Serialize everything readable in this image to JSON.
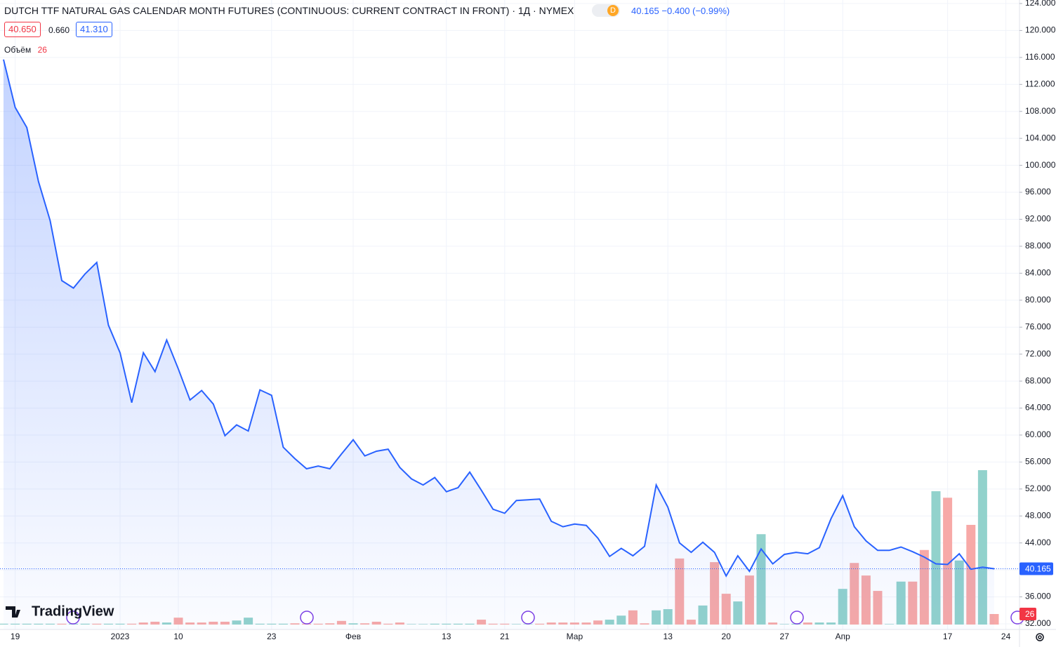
{
  "chart_data": {
    "type": "line",
    "title": "DUTCH TTF NATURAL GAS CALENDAR MONTH FUTURES (CONTINUOUS: CURRENT CONTRACT IN FRONT) · 1Д · NYMEX",
    "interval_badge": "D",
    "change": "−0.400",
    "change_percent": "(−0.99%)",
    "bid": "40.650",
    "spread": "0.660",
    "ask": "41.310",
    "watermark": "TradingView",
    "categories": [
      null,
      "19",
      null,
      null,
      null,
      null,
      null,
      null,
      null,
      null,
      "2023",
      null,
      null,
      null,
      null,
      "10",
      null,
      null,
      null,
      null,
      null,
      null,
      null,
      "23",
      null,
      null,
      null,
      null,
      null,
      null,
      "Фев",
      null,
      null,
      null,
      null,
      null,
      null,
      null,
      "13",
      null,
      null,
      null,
      null,
      "21",
      null,
      null,
      null,
      null,
      null,
      "Мар",
      null,
      null,
      null,
      null,
      null,
      null,
      null,
      "13",
      null,
      null,
      null,
      null,
      "20",
      null,
      null,
      null,
      null,
      "27",
      null,
      null,
      null,
      null,
      "Апр",
      null,
      null,
      null,
      null,
      null,
      null,
      null,
      null,
      "17",
      null,
      null,
      null,
      null,
      "24"
    ],
    "price": {
      "color": "#2962ff",
      "values": [
        115.7,
        108.6,
        105.6,
        97.6,
        91.8,
        82.9,
        81.8,
        83.9,
        85.6,
        76.3,
        72.2,
        64.8,
        72.2,
        69.4,
        74.1,
        69.8,
        65.2,
        66.6,
        64.6,
        59.9,
        61.5,
        60.6,
        66.7,
        65.9,
        58.2,
        56.5,
        55.0,
        55.4,
        55.0,
        57.2,
        59.3,
        56.9,
        57.6,
        57.9,
        55.2,
        53.5,
        52.6,
        53.7,
        51.6,
        52.2,
        54.5,
        51.8,
        49.0,
        48.4,
        50.3,
        50.4,
        50.5,
        47.2,
        46.4,
        46.8,
        46.6,
        44.7,
        42.0,
        43.2,
        42.1,
        43.5,
        52.6,
        49.3,
        44.0,
        42.6,
        44.1,
        42.6,
        39.1,
        42.1,
        39.8,
        43.1,
        40.9,
        42.3,
        42.6,
        42.4,
        43.3,
        47.6,
        51.0,
        46.4,
        44.3,
        42.9,
        42.9,
        43.4,
        42.7,
        41.9,
        40.9,
        40.8,
        42.4,
        40.1,
        40.4,
        40.165,
        null
      ]
    },
    "last_price": {
      "value": 40.165,
      "label": "40.165"
    },
    "volume": {
      "name": "Объём",
      "values": [
        2,
        2,
        2,
        2,
        2,
        2,
        2,
        2,
        2,
        2,
        2,
        2,
        5,
        7,
        5,
        17,
        5,
        5,
        7,
        7,
        10,
        17,
        2,
        2,
        2,
        3,
        2,
        2,
        3,
        9,
        3,
        3,
        7,
        2,
        5,
        1,
        1,
        2,
        2,
        2,
        2,
        12,
        2,
        2,
        1,
        1,
        2,
        5,
        5,
        5,
        5,
        10,
        12,
        22,
        35,
        3,
        35,
        38,
        163,
        12,
        47,
        154,
        76,
        57,
        121,
        223,
        5,
        1,
        2,
        5,
        5,
        5,
        88,
        152,
        121,
        83,
        1,
        106,
        106,
        184,
        329,
        313,
        158,
        246,
        381,
        26,
        null
      ],
      "colors": [
        "#92d2cc",
        "#92d2cc",
        "#92d2cc",
        "#92d2cc",
        "#92d2cc",
        "#f7a9a7",
        "#92d2cc",
        "#92d2cc",
        "#f7a9a7",
        "#92d2cc",
        "#92d2cc",
        "#f7a9a7",
        "#f7a9a7",
        "#f7a9a7",
        "#92d2cc",
        "#f7a9a7",
        "#f7a9a7",
        "#f7a9a7",
        "#f7a9a7",
        "#f7a9a7",
        "#92d2cc",
        "#92d2cc",
        "#92d2cc",
        "#92d2cc",
        "#92d2cc",
        "#f7a9a7",
        "#f7a9a7",
        "#f7a9a7",
        "#f7a9a7",
        "#f7a9a7",
        "#92d2cc",
        "#f7a9a7",
        "#f7a9a7",
        "#f7a9a7",
        "#f7a9a7",
        "#92d2cc",
        "#92d2cc",
        "#92d2cc",
        "#92d2cc",
        "#92d2cc",
        "#92d2cc",
        "#f7a9a7",
        "#f7a9a7",
        "#f7a9a7",
        "#92d2cc",
        "#92d2cc",
        "#f7a9a7",
        "#f7a9a7",
        "#f7a9a7",
        "#f7a9a7",
        "#f7a9a7",
        "#f7a9a7",
        "#92d2cc",
        "#92d2cc",
        "#f7a9a7",
        "#f7a9a7",
        "#92d2cc",
        "#92d2cc",
        "#f7a9a7",
        "#f7a9a7",
        "#92d2cc",
        "#f7a9a7",
        "#f7a9a7",
        "#92d2cc",
        "#f7a9a7",
        "#92d2cc",
        "#f7a9a7",
        "#92d2cc",
        "#92d2cc",
        "#f7a9a7",
        "#92d2cc",
        "#92d2cc",
        "#92d2cc",
        "#f7a9a7",
        "#f7a9a7",
        "#f7a9a7",
        "#92d2cc",
        "#92d2cc",
        "#f7a9a7",
        "#f7a9a7",
        "#92d2cc",
        "#f7a9a7",
        "#92d2cc",
        "#f7a9a7",
        "#92d2cc",
        "#f7a9a7",
        null
      ]
    },
    "ylim": [
      32,
      124
    ],
    "yticks": [
      {
        "value": 32,
        "label": "32.000"
      },
      {
        "value": 36,
        "label": "36.000"
      },
      {
        "value": 40,
        "label": "40.000"
      },
      {
        "value": 44,
        "label": "44.000"
      },
      {
        "value": 48,
        "label": "48.000"
      },
      {
        "value": 52,
        "label": "52.000"
      },
      {
        "value": 56,
        "label": "56.000"
      },
      {
        "value": 60,
        "label": "60.000"
      },
      {
        "value": 64,
        "label": "64.000"
      },
      {
        "value": 68,
        "label": "68.000"
      },
      {
        "value": 72,
        "label": "72.000"
      },
      {
        "value": 76,
        "label": "76.000"
      },
      {
        "value": 80,
        "label": "80.000"
      },
      {
        "value": 84,
        "label": "84.000"
      },
      {
        "value": 88,
        "label": "88.000"
      },
      {
        "value": 92,
        "label": "92.000"
      },
      {
        "value": 96,
        "label": "96.000"
      },
      {
        "value": 100,
        "label": "100.000"
      },
      {
        "value": 104,
        "label": "104.000"
      },
      {
        "value": 108,
        "label": "108.000"
      },
      {
        "value": 112,
        "label": "112.000"
      },
      {
        "value": 116,
        "label": "116.000"
      },
      {
        "value": 120,
        "label": "120.000"
      },
      {
        "value": 124,
        "label": "124.000"
      }
    ],
    "grid": true
  }
}
